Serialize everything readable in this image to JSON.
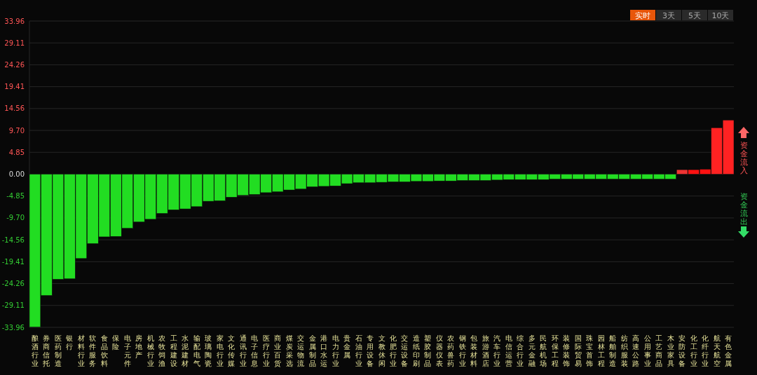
{
  "chart_data": {
    "type": "bar",
    "categories": [
      "酿酒行业",
      "券商信托",
      "医药制造",
      "银行",
      "材料行业",
      "软件服务",
      "食品饮料",
      "保险",
      "电子元件",
      "房地产",
      "机械行业",
      "农牧饲渔",
      "工程建设",
      "水泥建材",
      "输配电气",
      "玻璃陶瓷",
      "家电行业",
      "文化传媒",
      "通讯行业",
      "电子信息",
      "医疗行业",
      "商业百货",
      "煤炭采选",
      "交运物流",
      "金属制品",
      "港口水运",
      "电力行业",
      "贵金属",
      "石油行业",
      "专用设备",
      "文教休闲",
      "化肥行业",
      "交运设备",
      "造纸印刷",
      "塑胶制品",
      "仪器仪表",
      "农药兽药",
      "钢铁行业",
      "包装材料",
      "旅游酒店",
      "汽车行业",
      "电信运营",
      "综合行业",
      "多元金融",
      "民航机场",
      "环保工程",
      "装修装饰",
      "国际贸易",
      "珠宝首饰",
      "园林工程",
      "船舶制造",
      "纺织服装",
      "高速公路",
      "公用事业",
      "工艺商品",
      "木业家具",
      "安防设备",
      "化工行业",
      "化纤行业",
      "航天航空",
      "有色金属"
    ],
    "values": [
      -33.9,
      -26.9,
      -23.3,
      -23.2,
      -18.7,
      -15.4,
      -13.9,
      -13.8,
      -12.0,
      -10.6,
      -10.0,
      -8.7,
      -7.9,
      -7.7,
      -7.2,
      -6.0,
      -5.9,
      -5.1,
      -4.7,
      -4.5,
      -4.1,
      -3.9,
      -3.5,
      -3.3,
      -2.8,
      -2.7,
      -2.6,
      -2.1,
      -1.9,
      -1.9,
      -1.8,
      -1.7,
      -1.7,
      -1.6,
      -1.6,
      -1.5,
      -1.5,
      -1.4,
      -1.4,
      -1.4,
      -1.3,
      -1.2,
      -1.2,
      -1.2,
      -1.2,
      -1.1,
      -1.1,
      -1.1,
      -1.1,
      -1.1,
      -1.1,
      -1.1,
      -1.1,
      -1.1,
      -1.1,
      -1.1,
      1.0,
      1.0,
      1.1,
      10.3,
      12.0
    ],
    "colors": [
      "#22dd22",
      "#22dd22",
      "#22dd22",
      "#22dd22",
      "#22dd22",
      "#22dd22",
      "#22dd22",
      "#22dd22",
      "#22dd22",
      "#22dd22",
      "#22dd22",
      "#22dd22",
      "#22dd22",
      "#22dd22",
      "#22dd22",
      "#22dd22",
      "#22dd22",
      "#22dd22",
      "#22dd22",
      "#22dd22",
      "#22dd22",
      "#22dd22",
      "#22dd22",
      "#22dd22",
      "#22dd22",
      "#22dd22",
      "#22dd22",
      "#22dd22",
      "#22dd22",
      "#22dd22",
      "#22dd22",
      "#22dd22",
      "#22dd22",
      "#22dd22",
      "#22dd22",
      "#22dd22",
      "#22dd22",
      "#22dd22",
      "#22dd22",
      "#22dd22",
      "#22dd22",
      "#22dd22",
      "#22dd22",
      "#22dd22",
      "#22dd22",
      "#22dd22",
      "#22dd22",
      "#22dd22",
      "#22dd22",
      "#22dd22",
      "#22dd22",
      "#22dd22",
      "#22dd22",
      "#22dd22",
      "#22dd22",
      "#22dd22",
      "#ee3333",
      "#ff1111",
      "#ff1111",
      "#ff2222",
      "#ff2222"
    ],
    "ylim": [
      -33.96,
      33.96
    ],
    "yticks": [
      {
        "value": 33.96,
        "label": "33.96"
      },
      {
        "value": 29.11,
        "label": "29.11"
      },
      {
        "value": 24.26,
        "label": "24.26"
      },
      {
        "value": 19.41,
        "label": "19.41"
      },
      {
        "value": 14.56,
        "label": "14.56"
      },
      {
        "value": 9.7,
        "label": "9.70"
      },
      {
        "value": 4.85,
        "label": "4.85"
      },
      {
        "value": 0,
        "label": "0.00"
      },
      {
        "value": -4.85,
        "label": "-4.85"
      },
      {
        "value": -9.7,
        "label": "-9.70"
      },
      {
        "value": -14.56,
        "label": "-14.56"
      },
      {
        "value": -19.41,
        "label": "-19.41"
      },
      {
        "value": -24.26,
        "label": "-24.26"
      },
      {
        "value": -29.11,
        "label": "-29.11"
      },
      {
        "value": -33.96,
        "label": "-33.96"
      }
    ],
    "grid": "y",
    "annotations": [
      "实时",
      "3天",
      "5天",
      "10天",
      "资金流入",
      "资金流出"
    ]
  }
}
